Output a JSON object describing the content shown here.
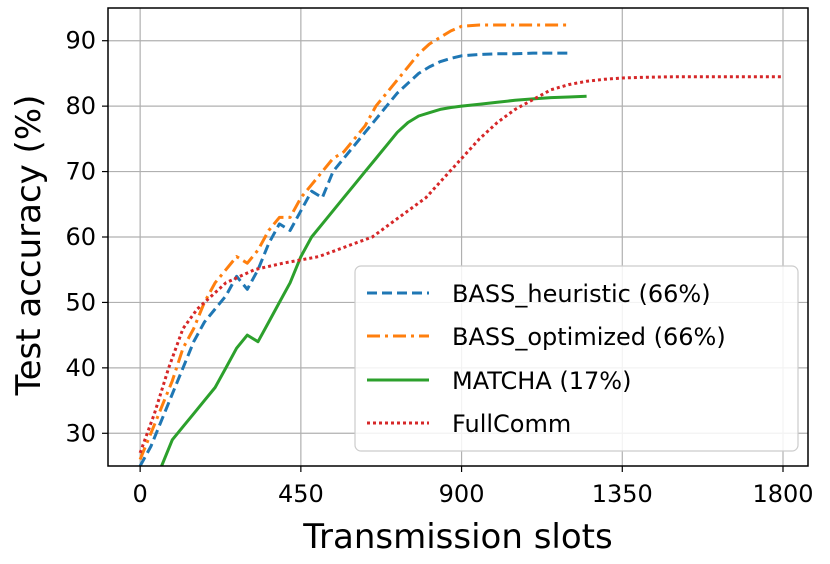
{
  "chart_data": {
    "type": "line",
    "title": "",
    "xlabel": "Transmission slots",
    "ylabel": "Test accuracy (%)",
    "xlim": [
      -90,
      1870
    ],
    "ylim": [
      25,
      95
    ],
    "xticks": [
      0,
      450,
      900,
      1350,
      1800
    ],
    "yticks": [
      30,
      40,
      50,
      60,
      70,
      80,
      90
    ],
    "grid": true,
    "legend_position": "lower-right",
    "series": [
      {
        "name": "BASS_heuristic (66%)",
        "color": "#1f77b4",
        "style": "dashed",
        "x": [
          0,
          30,
          60,
          90,
          120,
          150,
          180,
          210,
          240,
          270,
          300,
          330,
          360,
          390,
          420,
          450,
          480,
          510,
          540,
          570,
          600,
          630,
          660,
          690,
          720,
          750,
          780,
          810,
          840,
          870,
          900,
          950,
          1000,
          1050,
          1100,
          1150,
          1200
        ],
        "y": [
          25,
          28,
          32,
          36,
          40,
          44,
          47,
          49,
          51,
          54,
          52,
          55,
          59,
          62,
          61,
          64,
          67,
          66,
          70,
          72,
          74,
          76,
          78,
          80,
          82,
          83.5,
          85,
          86,
          86.8,
          87.3,
          87.7,
          87.9,
          88,
          88,
          88.1,
          88.1,
          88.1
        ]
      },
      {
        "name": "BASS_optimized (66%)",
        "color": "#ff7f0e",
        "style": "dashdot",
        "x": [
          0,
          30,
          60,
          90,
          120,
          150,
          180,
          210,
          240,
          270,
          300,
          330,
          360,
          390,
          420,
          450,
          480,
          510,
          540,
          570,
          600,
          630,
          660,
          690,
          720,
          750,
          780,
          810,
          840,
          870,
          900,
          950,
          1000,
          1050,
          1100,
          1150,
          1200
        ],
        "y": [
          26,
          30,
          34,
          38,
          43,
          46,
          50,
          53,
          55,
          57,
          56,
          58,
          61,
          63,
          63,
          66,
          68,
          70,
          72,
          73,
          75,
          77,
          80,
          82,
          84,
          86,
          88,
          89.5,
          90.5,
          91.5,
          92.2,
          92.4,
          92.4,
          92.4,
          92.4,
          92.4,
          92.4
        ]
      },
      {
        "name": "MATCHA (17%)",
        "color": "#2ca02c",
        "style": "solid",
        "x": [
          0,
          30,
          60,
          90,
          120,
          150,
          180,
          210,
          240,
          270,
          300,
          330,
          360,
          390,
          420,
          450,
          480,
          510,
          540,
          570,
          600,
          630,
          660,
          690,
          720,
          750,
          780,
          810,
          840,
          870,
          900,
          950,
          1000,
          1050,
          1100,
          1150,
          1200,
          1250
        ],
        "y": [
          20,
          22,
          25,
          29,
          31,
          33,
          35,
          37,
          40,
          43,
          45,
          44,
          47,
          50,
          53,
          57,
          60,
          62,
          64,
          66,
          68,
          70,
          72,
          74,
          76,
          77.5,
          78.5,
          79,
          79.5,
          79.8,
          80,
          80.3,
          80.6,
          80.9,
          81.1,
          81.3,
          81.4,
          81.5
        ]
      },
      {
        "name": "FullComm",
        "color": "#d62728",
        "style": "dotted",
        "x": [
          0,
          40,
          80,
          120,
          160,
          200,
          240,
          280,
          320,
          360,
          400,
          450,
          500,
          550,
          600,
          650,
          700,
          750,
          800,
          850,
          900,
          950,
          1000,
          1050,
          1100,
          1150,
          1200,
          1250,
          1300,
          1350,
          1400,
          1500,
          1600,
          1700,
          1800
        ],
        "y": [
          27,
          33,
          40,
          46,
          49,
          51,
          53,
          54,
          55,
          55.5,
          56,
          56.5,
          57,
          58,
          59,
          60,
          62,
          64,
          66,
          69,
          72,
          75,
          77.5,
          79.5,
          81,
          82.5,
          83.3,
          83.8,
          84.1,
          84.3,
          84.4,
          84.5,
          84.5,
          84.5,
          84.5
        ]
      }
    ]
  }
}
